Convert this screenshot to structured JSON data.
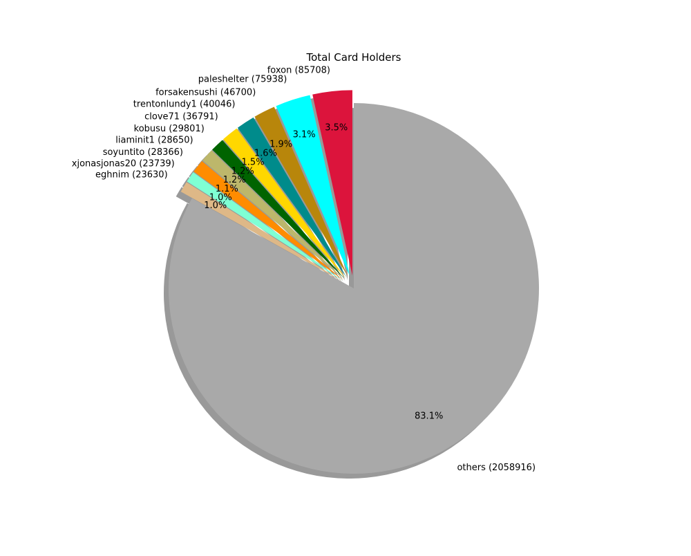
{
  "chart_data": {
    "type": "pie",
    "title": "Total Card Holders",
    "slices": [
      {
        "label": "foxon (85708)",
        "value": 85708,
        "pct_label": "3.5%",
        "color": "#dc143c"
      },
      {
        "label": "paleshelter (75938)",
        "value": 75938,
        "pct_label": "3.1%",
        "color": "#00ffff"
      },
      {
        "label": "forsakensushi (46700)",
        "value": 46700,
        "pct_label": "1.9%",
        "color": "#b8860b"
      },
      {
        "label": "trentonlundy1 (40046)",
        "value": 40046,
        "pct_label": "1.6%",
        "color": "#008b8b"
      },
      {
        "label": "clove71 (36791)",
        "value": 36791,
        "pct_label": "1.5%",
        "color": "#ffd700"
      },
      {
        "label": "kobusu (29801)",
        "value": 29801,
        "pct_label": "1.2%",
        "color": "#006400"
      },
      {
        "label": "liaminit1 (28650)",
        "value": 28650,
        "pct_label": "1.2%",
        "color": "#bdb76b"
      },
      {
        "label": "soyuntito (28366)",
        "value": 28366,
        "pct_label": "1.1%",
        "color": "#ff8c00"
      },
      {
        "label": "xjonasjonas20 (23739)",
        "value": 23739,
        "pct_label": "1.0%",
        "color": "#7fffd4"
      },
      {
        "label": "eghnim (23630)",
        "value": 23630,
        "pct_label": "1.0%",
        "color": "#deb887"
      },
      {
        "label": "others (2058916)",
        "value": 2058916,
        "pct_label": "83.1%",
        "color": "#a9a9a9"
      }
    ],
    "start_angle_deg": 90,
    "direction": "counterclockwise",
    "exploded_slices": "all except others",
    "shadow": true,
    "legend": "none"
  }
}
